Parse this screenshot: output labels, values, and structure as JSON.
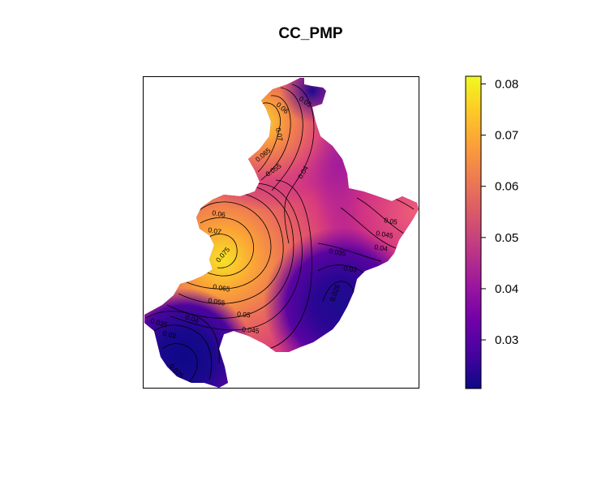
{
  "chart_data": {
    "type": "heatmap",
    "title": "CC_PMP",
    "xlabel": "",
    "ylabel": "",
    "colorbar": {
      "range": [
        0.0205,
        0.0815
      ],
      "ticks": [
        "0.03",
        "0.04",
        "0.05",
        "0.06",
        "0.07",
        "0.08"
      ],
      "tick_values": [
        0.03,
        0.04,
        0.05,
        0.06,
        0.07,
        0.08
      ],
      "colors": [
        "#0d0887",
        "#46039f",
        "#7201a8",
        "#9c179e",
        "#bd3786",
        "#d8576b",
        "#ed7953",
        "#fb9f3a",
        "#fdca26",
        "#f0f921"
      ],
      "position": "right"
    },
    "contour_labels": [
      "0.05",
      "0.06",
      "0.07",
      "0.065",
      "0.055",
      "0.04",
      "0.06",
      "0.07",
      "0.075",
      "0.065",
      "0.055",
      "0.05",
      "0.045",
      "0.04",
      "0.035",
      "0.03",
      "0.025",
      "0.05",
      "0.045",
      "0.04",
      "0.035",
      "0.03",
      "0.025"
    ],
    "grid": false,
    "legend": "right"
  }
}
